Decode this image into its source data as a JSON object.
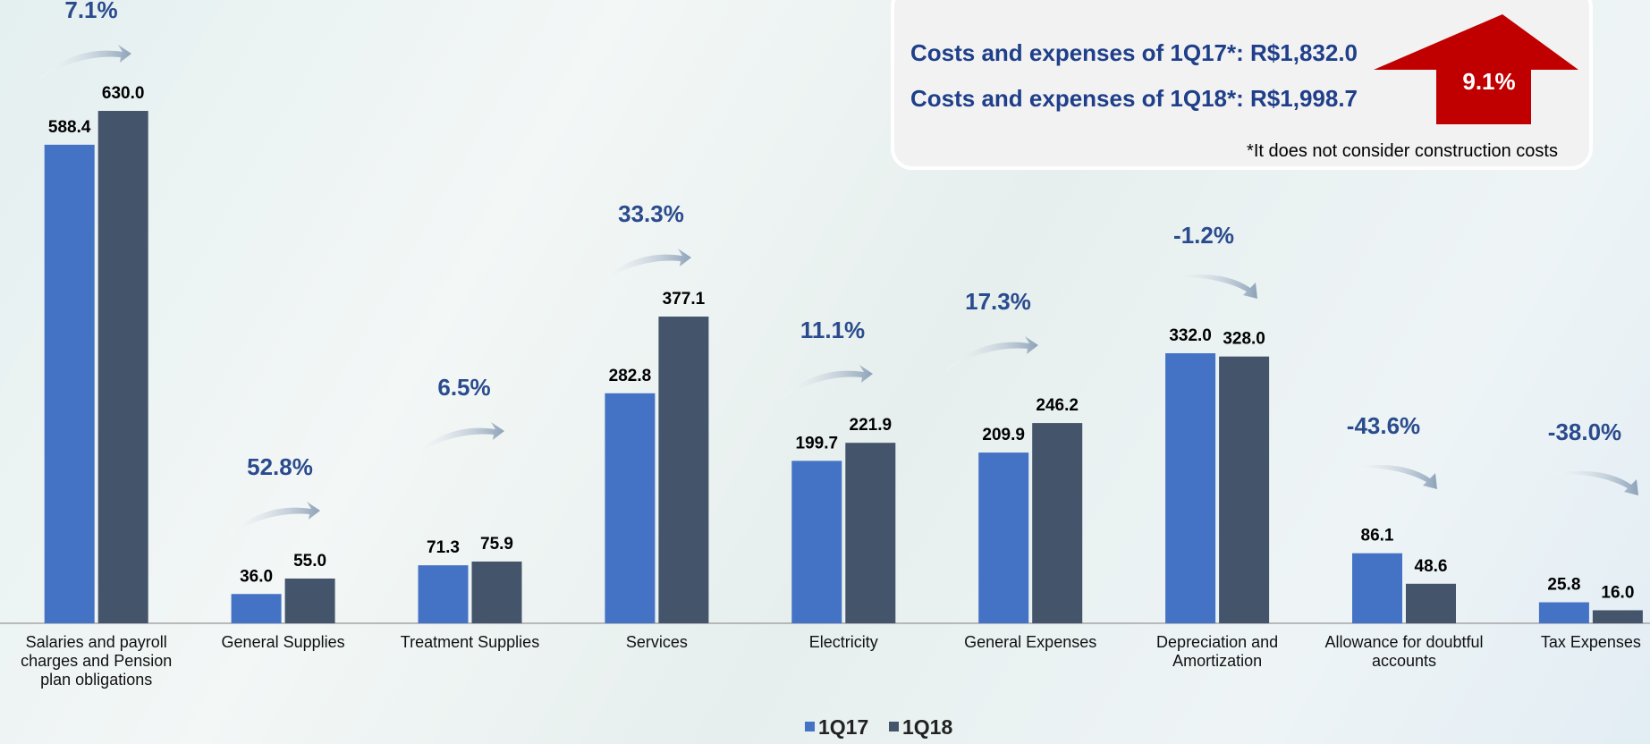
{
  "chart_data": {
    "type": "bar",
    "categories": [
      "Salaries and payroll charges and Pension plan obligations",
      "General Supplies",
      "Treatment Supplies",
      "Services",
      "Electricity",
      "General Expenses",
      "Depreciation and Amortization",
      "Allowance for doubtful accounts",
      "Tax Expenses"
    ],
    "series": [
      {
        "name": "1Q17",
        "color": "#4472c4",
        "values": [
          588.4,
          36.0,
          71.3,
          282.8,
          199.7,
          209.9,
          332.0,
          86.1,
          25.8
        ],
        "value_labels": [
          "588.4",
          "36.0",
          "71.3",
          "282.8",
          "199.7",
          "209.9",
          "332.0",
          "86.1",
          "25.8"
        ]
      },
      {
        "name": "1Q18",
        "color": "#44546a",
        "values": [
          630.0,
          55.0,
          75.9,
          377.1,
          221.9,
          246.2,
          328.0,
          48.6,
          16.0
        ],
        "value_labels": [
          "630.0",
          "55.0",
          "75.9",
          "377.1",
          "221.9",
          "246.2",
          "328.0",
          "48.6",
          "16.0"
        ]
      }
    ],
    "change_labels": [
      "7.1%",
      "52.8%",
      "6.5%",
      "33.3%",
      "11.1%",
      "17.3%",
      "-1.2%",
      "-43.6%",
      "-38.0%"
    ],
    "summary": {
      "line1": "Costs and expenses of 1Q17*: R$1,832.0",
      "line2": "Costs and expenses of 1Q18*: R$1,998.7",
      "change": "9.1%",
      "note": "*It does not consider construction costs"
    },
    "legend": true
  }
}
